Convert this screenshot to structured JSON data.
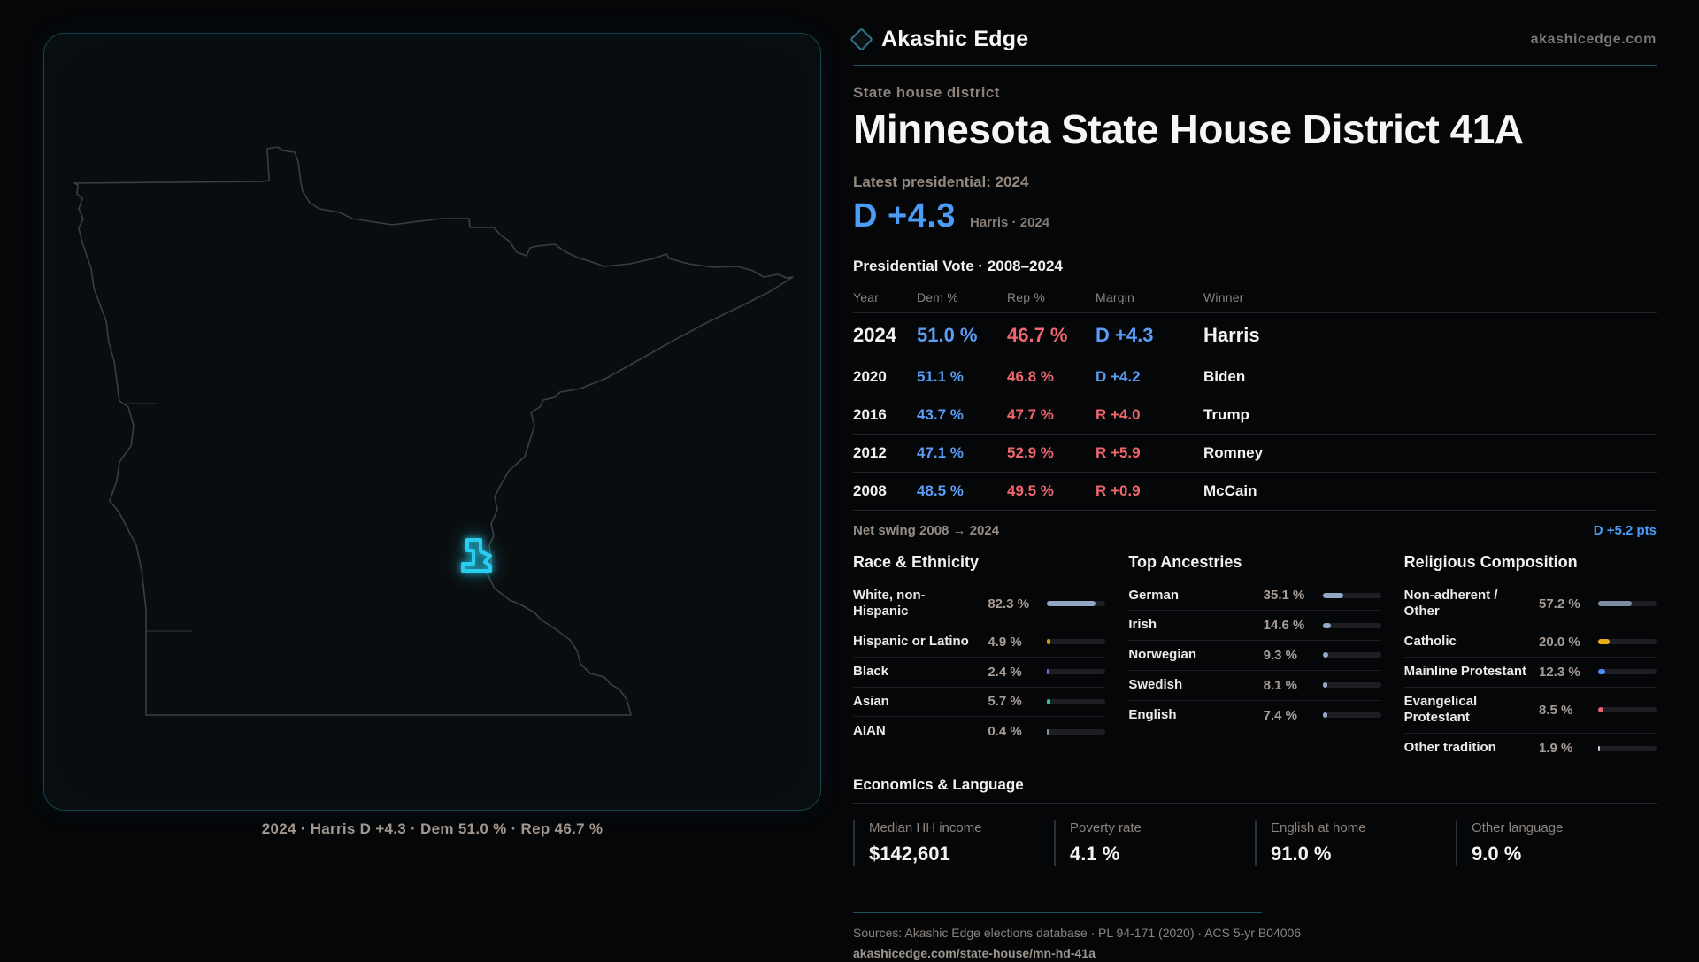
{
  "brand": {
    "name": "Akashic Edge",
    "domain": "akashicedge.com"
  },
  "hero": {
    "kicker": "State house district",
    "title": "Minnesota State House District 41A",
    "latest": "Latest presidential: 2024",
    "margin": "D +4.3",
    "margin_context": "Harris · 2024"
  },
  "map": {
    "caption": "2024 · Harris D +4.3 · Dem 51.0 % · Rep 46.7 %",
    "district_color": "#29cdf0",
    "outline_color": "#3a3e42"
  },
  "vote_table": {
    "title": "Presidential Vote · 2008–2024",
    "columns": [
      "Year",
      "Dem %",
      "Rep %",
      "Margin",
      "Winner"
    ],
    "rows": [
      {
        "year": "2024",
        "dem": "51.0 %",
        "rep": "46.7 %",
        "margin": "D +4.3",
        "winner": "Harris"
      },
      {
        "year": "2020",
        "dem": "51.1 %",
        "rep": "46.8 %",
        "margin": "D +4.2",
        "winner": "Biden"
      },
      {
        "year": "2016",
        "dem": "43.7 %",
        "rep": "47.7 %",
        "margin": "R +4.0",
        "winner": "Trump"
      },
      {
        "year": "2012",
        "dem": "47.1 %",
        "rep": "52.9 %",
        "margin": "R +5.9",
        "winner": "Romney"
      },
      {
        "year": "2008",
        "dem": "48.5 %",
        "rep": "49.5 %",
        "margin": "R +0.9",
        "winner": "McCain"
      }
    ]
  },
  "net_swing": {
    "label": "Net swing 2008 → 2024",
    "value": "D +5.2 pts"
  },
  "race": {
    "title": "Race & Ethnicity",
    "items": [
      {
        "label": "White, non-Hispanic",
        "value": "82.3 %",
        "pct": 82.3,
        "color": "#93a7c6"
      },
      {
        "label": "Hispanic or Latino",
        "value": "4.9 %",
        "pct": 4.9,
        "color": "#e8930f"
      },
      {
        "label": "Black",
        "value": "2.4 %",
        "pct": 2.4,
        "color": "#8b5cf6"
      },
      {
        "label": "Asian",
        "value": "5.7 %",
        "pct": 5.7,
        "color": "#2ec492"
      },
      {
        "label": "AIAN",
        "value": "0.4 %",
        "pct": 0.4,
        "color": "#8d949c"
      }
    ]
  },
  "ancestries": {
    "title": "Top Ancestries",
    "items": [
      {
        "label": "German",
        "value": "35.1 %",
        "pct": 35.1,
        "color": "#93a7c6"
      },
      {
        "label": "Irish",
        "value": "14.6 %",
        "pct": 14.6,
        "color": "#93a7c6"
      },
      {
        "label": "Norwegian",
        "value": "9.3 %",
        "pct": 9.3,
        "color": "#93a7c6"
      },
      {
        "label": "Swedish",
        "value": "8.1 %",
        "pct": 8.1,
        "color": "#93a7c6"
      },
      {
        "label": "English",
        "value": "7.4 %",
        "pct": 7.4,
        "color": "#93a7c6"
      }
    ]
  },
  "religion": {
    "title": "Religious Composition",
    "items": [
      {
        "label": "Non-adherent / Other",
        "value": "57.2 %",
        "pct": 57.2,
        "color": "#7d8ba1"
      },
      {
        "label": "Catholic",
        "value": "20.0 %",
        "pct": 20.0,
        "color": "#e5ae14"
      },
      {
        "label": "Mainline Protestant",
        "value": "12.3 %",
        "pct": 12.3,
        "color": "#4f8ef7"
      },
      {
        "label": "Evangelical Protestant",
        "value": "8.5 %",
        "pct": 8.5,
        "color": "#e0646e"
      },
      {
        "label": "Other tradition",
        "value": "1.9 %",
        "pct": 1.9,
        "color": "#c9cdd2"
      }
    ]
  },
  "economics": {
    "title": "Economics & Language",
    "stats": [
      {
        "label": "Median HH income",
        "value": "$142,601"
      },
      {
        "label": "Poverty rate",
        "value": "4.1 %"
      },
      {
        "label": "English at home",
        "value": "91.0 %"
      },
      {
        "label": "Other language",
        "value": "9.0 %"
      }
    ]
  },
  "footer": {
    "sources": "Sources: Akashic Edge elections database · PL 94-171 (2020) · ACS 5-yr B04006",
    "url": "akashicedge.com/state-house/mn-hd-41a"
  }
}
